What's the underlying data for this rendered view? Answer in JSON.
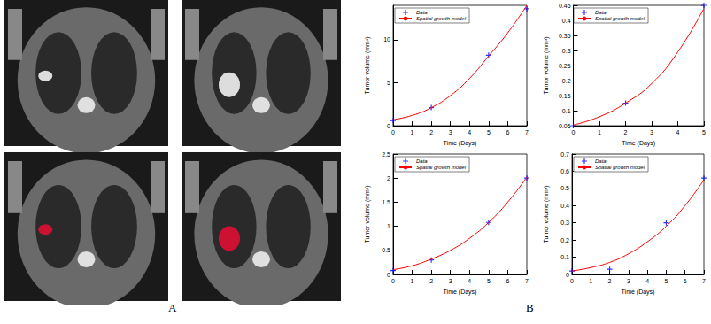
{
  "panel_labels": [
    "A",
    "B"
  ],
  "chart_data": [
    {
      "type": "line",
      "x_label": "Time (Days)",
      "y_label": "Tumor volume (mm³)",
      "xlim": [
        0,
        7
      ],
      "xticks": [
        0,
        1,
        2,
        3,
        4,
        5,
        6,
        7
      ],
      "ylim": [
        0,
        14
      ],
      "yticks": [
        0,
        5,
        10
      ],
      "legend": "upper left",
      "series": [
        {
          "name": "Data",
          "type": "scatter",
          "marker": "asterisk",
          "color": "#0000ff",
          "x": [
            0,
            2,
            5,
            7
          ],
          "values": [
            0.6,
            2.1,
            8.2,
            13.6
          ]
        },
        {
          "name": "Spatial growth model",
          "type": "line",
          "line_style": "solid",
          "color": "#ff0000",
          "x": [
            0,
            1,
            2,
            3,
            4,
            5,
            6,
            7
          ],
          "values": [
            0.7,
            1.2,
            2.1,
            3.5,
            5.5,
            8.1,
            10.8,
            14.0
          ]
        }
      ]
    },
    {
      "type": "line",
      "x_label": "Time (Days)",
      "y_label": "Tumor volume (mm³)",
      "xlim": [
        0,
        5
      ],
      "xticks": [
        0,
        1,
        2,
        3,
        4,
        5
      ],
      "ylim": [
        0.05,
        0.45
      ],
      "yticks": [
        0.05,
        0.1,
        0.15,
        0.2,
        0.25,
        0.3,
        0.35,
        0.4,
        0.45
      ],
      "legend": "upper left",
      "series": [
        {
          "name": "Data",
          "type": "scatter",
          "marker": "asterisk",
          "color": "#0000ff",
          "x": [
            0,
            2,
            5
          ],
          "values": [
            0.05,
            0.125,
            0.45
          ]
        },
        {
          "name": "Spatial growth model",
          "type": "line",
          "line_style": "solid",
          "color": "#ff0000",
          "x": [
            0,
            1,
            2,
            3,
            4,
            5
          ],
          "values": [
            0.052,
            0.08,
            0.125,
            0.19,
            0.295,
            0.44
          ]
        }
      ]
    },
    {
      "type": "line",
      "x_label": "Time (Days)",
      "y_label": "Tumor volume (mm³)",
      "xlim": [
        0,
        7
      ],
      "xticks": [
        0,
        1,
        2,
        3,
        4,
        5,
        6,
        7
      ],
      "ylim": [
        0,
        2.5
      ],
      "yticks": [
        0,
        0.5,
        1,
        1.5,
        2,
        2.5
      ],
      "legend": "upper left",
      "series": [
        {
          "name": "Data",
          "type": "scatter",
          "marker": "asterisk",
          "color": "#0000ff",
          "x": [
            0,
            2,
            5,
            7
          ],
          "values": [
            0.08,
            0.3,
            1.08,
            2.0
          ]
        },
        {
          "name": "Spatial growth model",
          "type": "line",
          "line_style": "solid",
          "color": "#ff0000",
          "x": [
            0,
            1,
            2,
            3,
            4,
            5,
            6,
            7
          ],
          "values": [
            0.1,
            0.18,
            0.32,
            0.5,
            0.75,
            1.08,
            1.5,
            2.02
          ]
        }
      ]
    },
    {
      "type": "line",
      "x_label": "Time (Days)",
      "y_label": "Tumor volume (mm³)",
      "xlim": [
        0,
        7
      ],
      "xticks": [
        0,
        1,
        2,
        3,
        4,
        5,
        6,
        7
      ],
      "ylim": [
        0,
        0.7
      ],
      "yticks": [
        0,
        0.1,
        0.2,
        0.3,
        0.4,
        0.5,
        0.6,
        0.7
      ],
      "legend": "upper left",
      "series": [
        {
          "name": "Data",
          "type": "scatter",
          "marker": "asterisk",
          "color": "#0000ff",
          "x": [
            0,
            2,
            5,
            7
          ],
          "values": [
            0.02,
            0.03,
            0.3,
            0.56
          ]
        },
        {
          "name": "Spatial growth model",
          "type": "line",
          "line_style": "solid",
          "color": "#ff0000",
          "x": [
            0,
            1,
            2,
            3,
            4,
            5,
            6,
            7
          ],
          "values": [
            0.02,
            0.04,
            0.07,
            0.12,
            0.19,
            0.28,
            0.4,
            0.55
          ]
        }
      ]
    }
  ]
}
